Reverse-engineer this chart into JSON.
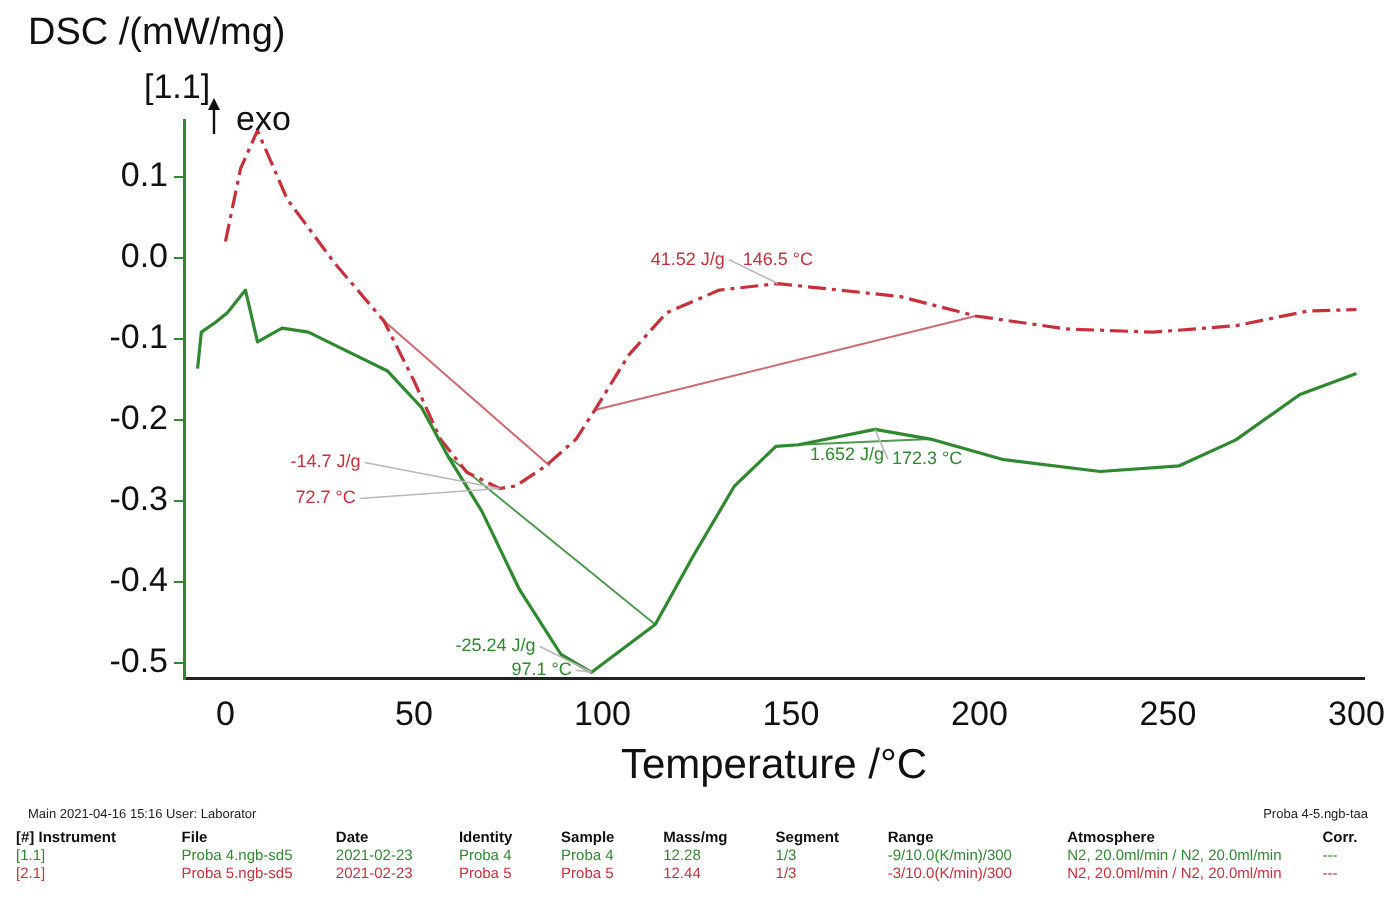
{
  "chart_data": {
    "type": "line",
    "ylabel": "DSC /(mW/mg)",
    "xlabel": "Temperature /°C",
    "xlim": [
      -11,
      302
    ],
    "xticks": [
      0,
      50,
      100,
      150,
      200,
      250,
      300
    ],
    "ylim": [
      -0.52,
      0.17
    ],
    "yticks": [
      0.1,
      {
        "value": 0,
        "label": "0.0"
      },
      -0.1,
      -0.2,
      -0.3,
      -0.4,
      -0.5
    ],
    "grid": false,
    "legend": false,
    "marker": "none",
    "series": [
      {
        "name": "[1.1]",
        "color": "#2f8a2f",
        "line_style": "solid",
        "x": [
          -7.4,
          -6.4,
          -2.7,
          0.5,
          5.3,
          8.5,
          15,
          22,
          29,
          43,
          52,
          59,
          68,
          78,
          89,
          97.1,
          114,
          124,
          135,
          146,
          152,
          172.3,
          187,
          206,
          232,
          253,
          268,
          285,
          300
        ],
        "values": [
          -0.137,
          -0.092,
          -0.08,
          -0.068,
          -0.04,
          -0.104,
          -0.087,
          -0.092,
          -0.108,
          -0.14,
          -0.185,
          -0.245,
          -0.313,
          -0.41,
          -0.49,
          -0.512,
          -0.453,
          -0.369,
          -0.282,
          -0.233,
          -0.231,
          -0.212,
          -0.224,
          -0.249,
          -0.264,
          -0.257,
          -0.225,
          -0.169,
          -0.143
        ]
      },
      {
        "name": "[2.1]",
        "color": "#c8303a",
        "line_style": "dashed",
        "x": [
          0,
          4,
          8.5,
          16.4,
          29,
          42,
          50,
          57,
          64,
          72.7,
          77,
          85,
          93,
          98,
          107,
          117,
          131,
          146.5,
          179,
          199,
          223,
          246,
          268,
          287,
          300
        ],
        "values": [
          0.02,
          0.11,
          0.157,
          0.072,
          -0.007,
          -0.078,
          -0.152,
          -0.224,
          -0.265,
          -0.285,
          -0.282,
          -0.257,
          -0.224,
          -0.188,
          -0.12,
          -0.068,
          -0.04,
          -0.032,
          -0.048,
          -0.072,
          -0.088,
          -0.092,
          -0.084,
          -0.066,
          -0.064
        ]
      },
      {
        "color": "#d06a70",
        "line_style": "solid",
        "x": [
          42,
          86
        ],
        "values": [
          -0.078,
          -0.257
        ]
      },
      {
        "color": "#d06a70",
        "line_style": "solid",
        "x": [
          98,
          199
        ],
        "values": [
          -0.188,
          -0.072
        ]
      },
      {
        "color": "#4f9a4f",
        "line_style": "solid",
        "x": [
          59,
          114
        ],
        "values": [
          -0.245,
          -0.453
        ]
      },
      {
        "color": "#4f9a4f",
        "line_style": "solid",
        "x": [
          152,
          187
        ],
        "values": [
          -0.231,
          -0.224
        ]
      }
    ],
    "annotations": [
      {
        "text": "41.52 J/g",
        "x": 146.5,
        "y": -0.032
      },
      {
        "text": "146.5 °C",
        "x": 146.5,
        "y": -0.032
      },
      {
        "text": "-14.7 J/g",
        "x": 72.7,
        "y": -0.285
      },
      {
        "text": "72.7 °C",
        "x": 72.7,
        "y": -0.285
      },
      {
        "text": "-25.24 J/g",
        "x": 97.1,
        "y": -0.512
      },
      {
        "text": "97.1 °C",
        "x": 97.1,
        "y": -0.512
      },
      {
        "text": "1.652 J/g",
        "x": 172.3,
        "y": -0.212
      },
      {
        "text": "172.3 °C",
        "x": 172.3,
        "y": -0.212
      },
      "[1.1]",
      "exo",
      "Main   2021-04-16 15:16   User: Laborator",
      "Proba 4-5.ngb-taa",
      "[#] Instrument",
      "File",
      "Date",
      "Identity",
      "Sample",
      "Mass/mg",
      "Segment",
      "Range",
      "Atmosphere",
      "Corr.",
      "Proba 4.ngb-sd5",
      "2021-02-23",
      "Proba 4",
      "Proba 4",
      "12.28",
      "1/3",
      "-9/10.0(K/min)/300",
      "N2, 20.0ml/min / N2, 20.0ml/min",
      "---",
      "Proba 5.ngb-sd5",
      "2021-02-23",
      "Proba 5",
      "Proba 5",
      "12.44",
      "1/3",
      "-3/10.0(K/min)/300",
      "N2, 20.0ml/min / N2, 20.0ml/min",
      "---"
    ]
  }
}
